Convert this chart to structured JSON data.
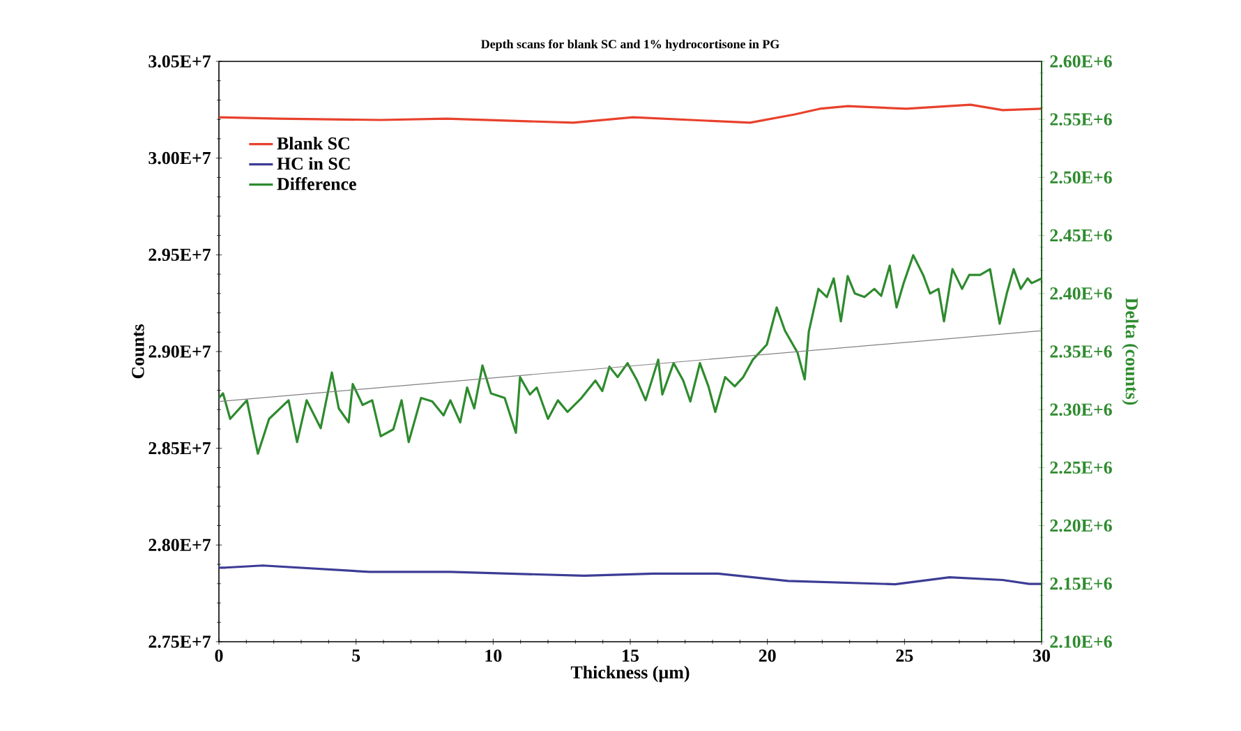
{
  "chart_data": {
    "type": "line",
    "title": "Depth scans for blank SC and 1% hydrocortisone in PG",
    "xlabel": "Thickness (µm)",
    "ylabel": "Counts",
    "y2label": "Delta (counts)",
    "xlim": [
      0,
      30
    ],
    "xticks": [
      0,
      5,
      10,
      15,
      20,
      25,
      30
    ],
    "ylim": [
      27500000,
      30500000
    ],
    "yticks": [
      {
        "value": 27500000,
        "label": "2.75E+7"
      },
      {
        "value": 28000000,
        "label": "2.80E+7"
      },
      {
        "value": 28500000,
        "label": "2.85E+7"
      },
      {
        "value": 29000000,
        "label": "2.90E+7"
      },
      {
        "value": 29500000,
        "label": "2.95E+7"
      },
      {
        "value": 30000000,
        "label": "3.00E+7"
      },
      {
        "value": 30500000,
        "label": "3.05E+7"
      }
    ],
    "y2lim": [
      2100000,
      2600000
    ],
    "y2ticks": [
      {
        "value": 2100000,
        "label": "2.10E+6"
      },
      {
        "value": 2150000,
        "label": "2.15E+6"
      },
      {
        "value": 2200000,
        "label": "2.20E+6"
      },
      {
        "value": 2250000,
        "label": "2.25E+6"
      },
      {
        "value": 2300000,
        "label": "2.30E+6"
      },
      {
        "value": 2350000,
        "label": "2.35E+6"
      },
      {
        "value": 2400000,
        "label": "2.40E+6"
      },
      {
        "value": 2450000,
        "label": "2.45E+6"
      },
      {
        "value": 2500000,
        "label": "2.50E+6"
      },
      {
        "value": 2550000,
        "label": "2.55E+6"
      },
      {
        "value": 2600000,
        "label": "2.60E+6"
      }
    ],
    "legend": "top left",
    "series": [
      {
        "name": "Blank SC",
        "color": "#e8412c",
        "x": [
          0,
          2.19,
          5.9,
          8.29,
          12.92,
          15.1,
          19.37,
          21.0,
          21.91,
          22.93,
          25.07,
          27.41,
          28.58,
          30
        ],
        "values": [
          30211000,
          30204000,
          30197000,
          30204000,
          30183000,
          30211000,
          30183000,
          30226000,
          30255000,
          30269000,
          30255000,
          30276000,
          30248000,
          30255000
        ]
      },
      {
        "name": "HC in SC",
        "color": "#3c3c96",
        "x": [
          0,
          0.23,
          1.6,
          5.49,
          8.44,
          13.32,
          15.86,
          18.2,
          20.75,
          24.66,
          26.64,
          28.58,
          29.55,
          30
        ],
        "values": [
          27883000,
          27883000,
          27894000,
          27861000,
          27861000,
          27841000,
          27852000,
          27852000,
          27814000,
          27797000,
          27833000,
          27819000,
          27799000,
          27799000
        ]
      },
      {
        "name": "Difference",
        "color": "#2e8b2e",
        "axis": "y2",
        "x": [
          0,
          0.15,
          0.41,
          1.02,
          1.42,
          1.83,
          2.54,
          2.85,
          3.2,
          3.71,
          4.12,
          4.37,
          4.73,
          4.88,
          5.24,
          5.59,
          5.9,
          6.36,
          6.66,
          6.92,
          7.37,
          7.78,
          8.19,
          8.44,
          8.8,
          9.05,
          9.31,
          9.61,
          9.92,
          10.42,
          10.83,
          10.98,
          11.34,
          11.59,
          12.0,
          12.36,
          12.71,
          13.22,
          13.73,
          13.98,
          14.24,
          14.54,
          14.9,
          15.25,
          15.56,
          16.02,
          16.17,
          16.58,
          16.93,
          17.19,
          17.54,
          17.85,
          18.1,
          18.46,
          18.81,
          19.12,
          19.47,
          19.98,
          20.34,
          20.64,
          21.1,
          21.36,
          21.51,
          21.86,
          22.17,
          22.42,
          22.68,
          22.93,
          23.19,
          23.54,
          23.9,
          24.15,
          24.46,
          24.71,
          24.97,
          25.32,
          25.68,
          25.93,
          26.24,
          26.44,
          26.75,
          27.1,
          27.36,
          27.76,
          28.12,
          28.47,
          28.73,
          28.98,
          29.24,
          29.49,
          29.64,
          30
        ],
        "values": [
          2310000,
          2314000,
          2292000,
          2308000,
          2262000,
          2292000,
          2308000,
          2272000,
          2308000,
          2284000,
          2332000,
          2301000,
          2289000,
          2322000,
          2304000,
          2308000,
          2277000,
          2283000,
          2308000,
          2272000,
          2310000,
          2307000,
          2295000,
          2308000,
          2289000,
          2319000,
          2301000,
          2338000,
          2314000,
          2310000,
          2280000,
          2328000,
          2313000,
          2319000,
          2292000,
          2308000,
          2298000,
          2310000,
          2325000,
          2316000,
          2337000,
          2328000,
          2340000,
          2325000,
          2308000,
          2343000,
          2313000,
          2340000,
          2325000,
          2307000,
          2340000,
          2320000,
          2298000,
          2328000,
          2320000,
          2328000,
          2343000,
          2356000,
          2388000,
          2368000,
          2349000,
          2326000,
          2367000,
          2404000,
          2397000,
          2413000,
          2376000,
          2415000,
          2400000,
          2397000,
          2404000,
          2398000,
          2424000,
          2388000,
          2409000,
          2433000,
          2416000,
          2400000,
          2404000,
          2376000,
          2421000,
          2404000,
          2416000,
          2416000,
          2421000,
          2374000,
          2400000,
          2421000,
          2404000,
          2413000,
          2409000,
          2413000
        ]
      },
      {
        "color": "#808080",
        "axis": "y2",
        "x": [
          0,
          30
        ],
        "values": [
          2307000,
          2368000
        ]
      }
    ]
  }
}
